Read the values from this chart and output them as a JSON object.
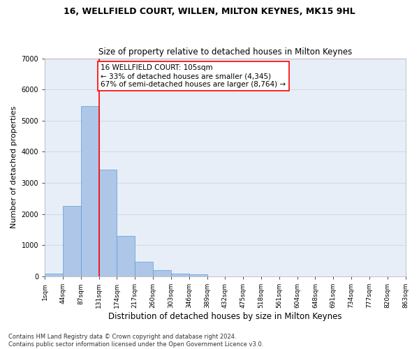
{
  "title": "16, WELLFIELD COURT, WILLEN, MILTON KEYNES, MK15 9HL",
  "subtitle": "Size of property relative to detached houses in Milton Keynes",
  "xlabel": "Distribution of detached houses by size in Milton Keynes",
  "ylabel": "Number of detached properties",
  "bar_values": [
    80,
    2270,
    5470,
    3430,
    1300,
    470,
    200,
    90,
    60,
    0,
    0,
    0,
    0,
    0,
    0,
    0,
    0,
    0,
    0,
    0
  ],
  "bar_labels": [
    "1sqm",
    "44sqm",
    "87sqm",
    "131sqm",
    "174sqm",
    "217sqm",
    "260sqm",
    "303sqm",
    "346sqm",
    "389sqm",
    "432sqm",
    "475sqm",
    "518sqm",
    "561sqm",
    "604sqm",
    "648sqm",
    "691sqm",
    "734sqm",
    "777sqm",
    "820sqm",
    "863sqm"
  ],
  "bar_color": "#aec6e8",
  "bar_edge_color": "#5a9fd4",
  "vline_color": "red",
  "vline_x": 2.5,
  "annotation_text": "16 WELLFIELD COURT: 105sqm\n← 33% of detached houses are smaller (4,345)\n67% of semi-detached houses are larger (8,764) →",
  "annotation_box_color": "white",
  "annotation_box_edge_color": "red",
  "ylim": [
    0,
    7000
  ],
  "yticks": [
    0,
    1000,
    2000,
    3000,
    4000,
    5000,
    6000,
    7000
  ],
  "grid_color": "#d0d8e8",
  "background_color": "#e8eef8",
  "footer_line1": "Contains HM Land Registry data © Crown copyright and database right 2024.",
  "footer_line2": "Contains public sector information licensed under the Open Government Licence v3.0.",
  "title_fontsize": 9,
  "subtitle_fontsize": 8.5,
  "xlabel_fontsize": 8.5,
  "ylabel_fontsize": 8,
  "tick_fontsize": 6.5,
  "footer_fontsize": 6,
  "annotation_fontsize": 7.5
}
